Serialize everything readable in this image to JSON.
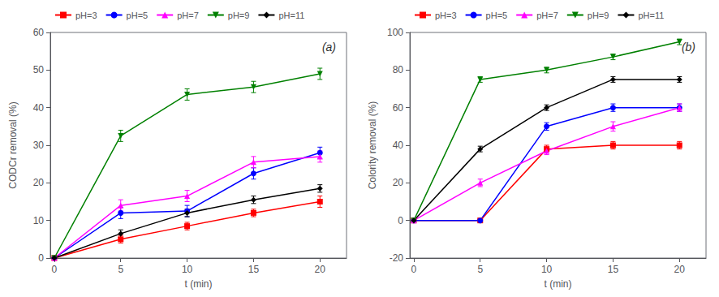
{
  "chart_data": [
    {
      "type": "line",
      "x": [
        0,
        5,
        10,
        15,
        20
      ],
      "xlabel": "t (min)",
      "ylabel": "CODCr removal (%)",
      "annotation": "(a)",
      "xlim": [
        -0.3,
        22
      ],
      "xticks": [
        0,
        5,
        10,
        15,
        20
      ],
      "ylim": [
        0,
        60
      ],
      "yticks": [
        0,
        10,
        20,
        30,
        40,
        50,
        60
      ],
      "grid": false,
      "legend": "upper left",
      "series": [
        {
          "name": "pH=3",
          "color": "#ff0000",
          "marker": "square",
          "values": [
            0,
            5.0,
            8.5,
            12.0,
            15.0
          ],
          "errors": [
            0,
            1.0,
            1.0,
            1.0,
            1.5
          ]
        },
        {
          "name": "pH=5",
          "color": "#0000ff",
          "marker": "circle",
          "values": [
            0,
            12.0,
            12.5,
            22.5,
            28.0
          ],
          "errors": [
            0,
            1.5,
            1.5,
            1.5,
            1.5
          ]
        },
        {
          "name": "pH=7",
          "color": "#ff00ff",
          "marker": "triangle-up",
          "values": [
            0,
            14.0,
            16.5,
            25.5,
            27.0
          ],
          "errors": [
            0,
            1.5,
            1.5,
            1.5,
            1.5
          ]
        },
        {
          "name": "pH=9",
          "color": "#008000",
          "marker": "triangle-down",
          "values": [
            0,
            32.5,
            43.5,
            45.5,
            49.0
          ],
          "errors": [
            0,
            1.5,
            1.5,
            1.5,
            1.5
          ]
        },
        {
          "name": "pH=11",
          "color": "#000000",
          "marker": "diamond",
          "values": [
            0,
            6.5,
            12.0,
            15.5,
            18.5
          ],
          "errors": [
            0,
            1.0,
            1.0,
            1.0,
            1.0
          ]
        }
      ]
    },
    {
      "type": "line",
      "x": [
        0,
        5,
        10,
        15,
        20
      ],
      "xlabel": "t (min)",
      "ylabel": "Colority removal (%)",
      "annotation": "(b)",
      "xlim": [
        -0.3,
        22
      ],
      "xticks": [
        0,
        5,
        10,
        15,
        20
      ],
      "ylim": [
        -20,
        100
      ],
      "yticks": [
        -20,
        0,
        20,
        40,
        60,
        80,
        100
      ],
      "grid": false,
      "legend": "upper left",
      "series": [
        {
          "name": "pH=3",
          "color": "#ff0000",
          "marker": "square",
          "values": [
            0,
            0.0,
            38.0,
            40.0,
            40.0
          ],
          "errors": [
            0,
            0.5,
            2.0,
            2.0,
            2.0
          ]
        },
        {
          "name": "pH=5",
          "color": "#0000ff",
          "marker": "circle",
          "values": [
            0,
            0.0,
            50.0,
            60.0,
            60.0
          ],
          "errors": [
            0,
            0.5,
            2.0,
            2.0,
            2.0
          ]
        },
        {
          "name": "pH=7",
          "color": "#ff00ff",
          "marker": "triangle-up",
          "values": [
            0,
            20.0,
            37.0,
            50.0,
            60.0
          ],
          "errors": [
            0,
            2.0,
            2.0,
            2.5,
            2.0
          ]
        },
        {
          "name": "pH=9",
          "color": "#008000",
          "marker": "triangle-down",
          "values": [
            0,
            75.0,
            80.0,
            87.0,
            95.0
          ],
          "errors": [
            0,
            1.5,
            1.5,
            1.5,
            1.5
          ]
        },
        {
          "name": "pH=11",
          "color": "#000000",
          "marker": "diamond",
          "values": [
            0,
            38.0,
            60.0,
            75.0,
            75.0
          ],
          "errors": [
            0,
            1.5,
            1.5,
            1.5,
            1.5
          ]
        }
      ]
    }
  ]
}
